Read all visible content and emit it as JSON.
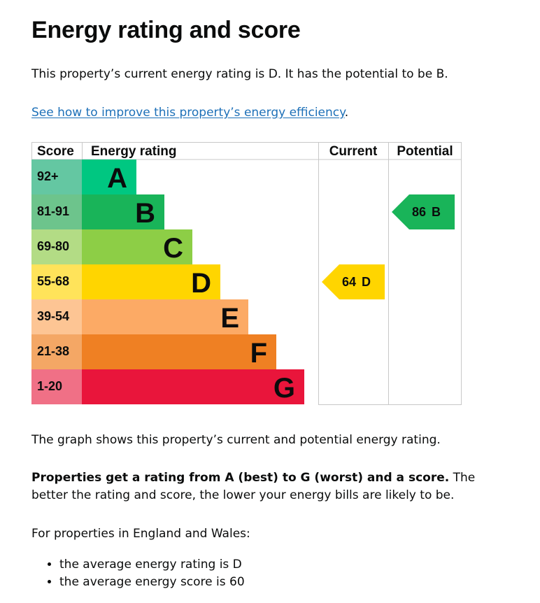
{
  "page": {
    "title": "Energy rating and score",
    "intro": "This property’s current energy rating is D. It has the potential to be B.",
    "link_text": "See how to improve this property’s energy efficiency",
    "link_suffix": ".",
    "caption": "The graph shows this property’s current and potential energy rating.",
    "explain_bold": "Properties get a rating from A (best) to G (worst) and a score.",
    "explain_rest": " The better the rating and score, the lower your energy bills are likely to be.",
    "region": "For properties in England and Wales:",
    "facts": [
      "the average energy rating is D",
      "the average energy score is 60"
    ]
  },
  "chart_data": {
    "type": "table",
    "headers": {
      "score": "Score",
      "rating": "Energy rating",
      "current": "Current",
      "potential": "Potential"
    },
    "bands": [
      {
        "letter": "A",
        "score": "92+",
        "color": "#00c781",
        "score_bg": "#64c7a2"
      },
      {
        "letter": "B",
        "score": "81-91",
        "color": "#19b459",
        "score_bg": "#6dc48c"
      },
      {
        "letter": "C",
        "score": "69-80",
        "color": "#8dce46",
        "score_bg": "#b3dc85"
      },
      {
        "letter": "D",
        "score": "55-68",
        "color": "#ffd500",
        "score_bg": "#ffe35a"
      },
      {
        "letter": "E",
        "score": "39-54",
        "color": "#fcaa65",
        "score_bg": "#fdc594"
      },
      {
        "letter": "F",
        "score": "21-38",
        "color": "#ef8023",
        "score_bg": "#f4a765"
      },
      {
        "letter": "G",
        "score": "1-20",
        "color": "#e9153b",
        "score_bg": "#f07086"
      }
    ],
    "current": {
      "score": "64",
      "letter": "D",
      "color": "#ffd500"
    },
    "potential": {
      "score": "86",
      "letter": "B",
      "color": "#19b459"
    }
  }
}
